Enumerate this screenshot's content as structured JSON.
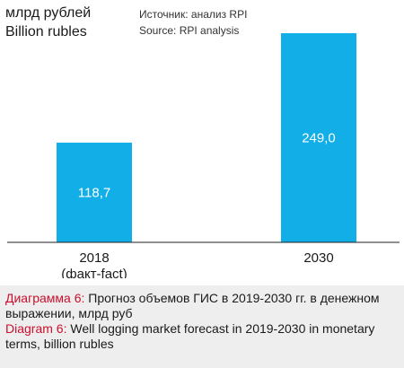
{
  "unit_ru": "млрд рублей",
  "unit_en": "Billion rubles",
  "source_ru": "Источник: анализ RPI",
  "source_en": "Source: RPI analysis",
  "colors": {
    "bar": "#12aee8",
    "bar_label": "#ffffff",
    "axis": "#222222",
    "caption_bg": "#eeeeee",
    "caption_label": "#c8102e"
  },
  "chart_data": {
    "type": "bar",
    "categories": [
      "2018",
      "2030"
    ],
    "category_sublabels": [
      "(факт-fact)",
      ""
    ],
    "values": [
      118.7,
      249.0
    ],
    "value_labels": [
      "118,7",
      "249,0"
    ],
    "ylim": [
      0,
      265
    ],
    "grid": false,
    "legend": "none"
  },
  "caption": {
    "ru_label": "Диаграмма 6:",
    "ru_text": " Прогноз объемов ГИС в 2019-2030 гг. в денежном выражении, млрд руб",
    "en_label": "Diagram 6:",
    "en_text": " Well logging market forecast in 2019-2030 in monetary terms, billion rubles"
  }
}
